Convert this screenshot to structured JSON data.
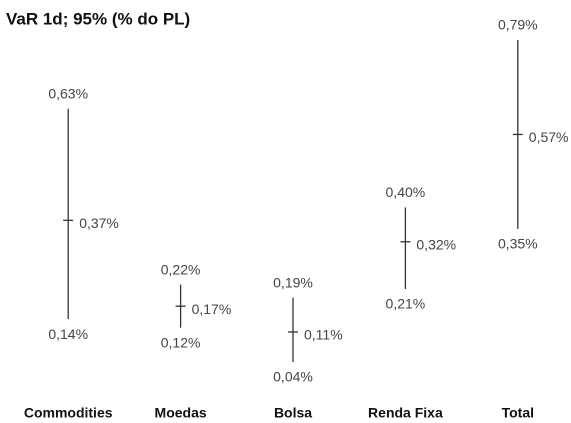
{
  "chart_data": {
    "type": "high-low",
    "title": "VaR 1d; 95% (% do PL)",
    "categories": [
      "Commodities",
      "Moedas",
      "Bolsa",
      "Renda Fixa",
      "Total"
    ],
    "high": {
      "values": [
        0.63,
        0.22,
        0.19,
        0.4,
        0.79
      ],
      "value_labels": [
        "0,63%",
        "0,22%",
        "0,19%",
        "0,40%",
        "0,79%"
      ]
    },
    "mid": {
      "values": [
        0.37,
        0.17,
        0.11,
        0.32,
        0.57
      ],
      "value_labels": [
        "0,37%",
        "0,17%",
        "0,11%",
        "0,32%",
        "0,57%"
      ]
    },
    "low": {
      "values": [
        0.14,
        0.12,
        0.04,
        0.21,
        0.35
      ],
      "value_labels": [
        "0,14%",
        "0,12%",
        "0,04%",
        "0,21%",
        "0,35%"
      ]
    },
    "color": "#333333"
  }
}
